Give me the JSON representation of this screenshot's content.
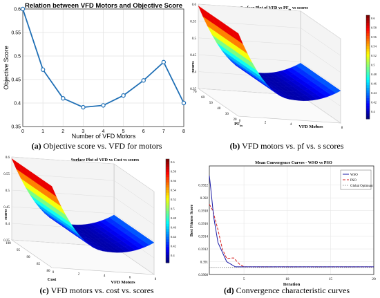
{
  "chart_data": [
    {
      "type": "line",
      "title": "Relation between VFD Motors and Objective Score",
      "xlabel": "Number of VFD Motors",
      "ylabel": "Objective Score",
      "x": [
        0,
        1,
        2,
        3,
        4,
        5,
        6,
        7,
        8
      ],
      "values": [
        0.6,
        0.471,
        0.41,
        0.391,
        0.395,
        0.416,
        0.448,
        0.487,
        0.4
      ],
      "xlim": [
        0,
        8
      ],
      "ylim": [
        0.35,
        0.6
      ],
      "x_ticks": [
        "0",
        "1",
        "2",
        "3",
        "4",
        "5",
        "6",
        "7",
        "8"
      ],
      "y_ticks": [
        "0.35",
        "0.4",
        "0.45",
        "0.5",
        "0.55",
        "0.6"
      ],
      "grid": true,
      "color": "#1f6fb5",
      "caption_tag": "(a)",
      "caption": "Objective score vs. VFD for motors"
    },
    {
      "type": "surface",
      "title": "Surface Plot of VFD vs PF",
      "title_sub": "in",
      "title_tail": "vs scores",
      "xlabel": "VFD Motors",
      "ylabel": "PF",
      "ylabel_sub": "in",
      "zlabel": "scores",
      "x_ticks": [
        "0",
        "2",
        "4",
        "6",
        "8"
      ],
      "y_ticks": [
        "20",
        "30",
        "40",
        "50",
        "60",
        "70"
      ],
      "z_ticks": [
        "0.35",
        "0.4",
        "0.45",
        "0.5",
        "0.55",
        "0.6"
      ],
      "colorbar_ticks": [
        "0.6",
        "0.58",
        "0.56",
        "0.54",
        "0.52",
        "0.5",
        "0.48",
        "0.46",
        "0.44",
        "0.42",
        "0.4"
      ],
      "colormap": "jet",
      "caption_tag": "(b)",
      "caption": "VFD motors vs. pf vs. s scores"
    },
    {
      "type": "surface",
      "title": "Surface Plot of VFD vs Cost vs scores",
      "xlabel": "VFD Motors",
      "ylabel": "Cost",
      "zlabel": "scores",
      "x_ticks": [
        "0",
        "2",
        "4",
        "6",
        "8"
      ],
      "y_ticks": [
        "80",
        "85",
        "90",
        "95",
        "100"
      ],
      "z_ticks": [
        "0.35",
        "0.4",
        "0.45",
        "0.5",
        "0.55",
        "0.6"
      ],
      "colorbar_ticks": [
        "0.6",
        "0.58",
        "0.56",
        "0.54",
        "0.52",
        "0.5",
        "0.48",
        "0.46",
        "0.44",
        "0.42",
        "0.4"
      ],
      "colormap": "jet",
      "caption_tag": "(c)",
      "caption": "VFD motors vs. cost vs. scores"
    },
    {
      "type": "line",
      "title": "Mean Convergence Curves - WSO vs PSO",
      "xlabel": "Iteration",
      "ylabel": "Best Fitness Score",
      "xlim": [
        1,
        20
      ],
      "ylim": [
        0.3908,
        0.3925
      ],
      "x_ticks": [
        "5",
        "10",
        "15",
        "20"
      ],
      "y_ticks": [
        "0.3908",
        "0.391",
        "0.3912",
        "0.3914",
        "0.3916",
        "0.3918",
        "0.392",
        "0.3922"
      ],
      "grid": true,
      "series": [
        {
          "name": "WSO",
          "color": "#1a1aa6",
          "style": "solid",
          "x": [
            1,
            1.2,
            1.5,
            2,
            3,
            4,
            20
          ],
          "y": [
            0.39235,
            0.3921,
            0.3917,
            0.3913,
            0.391,
            0.39092,
            0.39092
          ]
        },
        {
          "name": "PSO",
          "color": "#d62020",
          "style": "dashed",
          "x": [
            1,
            1.4,
            2,
            2.5,
            3,
            3.8,
            4.5,
            5,
            20
          ],
          "y": [
            0.3919,
            0.3918,
            0.3915,
            0.3912,
            0.39105,
            0.39106,
            0.39096,
            0.39092,
            0.39092
          ]
        },
        {
          "name": "Global Optimum",
          "color": "#888888",
          "style": "dotted",
          "x": [
            1,
            20
          ],
          "y": [
            0.39091,
            0.39091
          ]
        }
      ],
      "caption_tag": "(d)",
      "caption": "Convergence characteristic curves"
    }
  ]
}
